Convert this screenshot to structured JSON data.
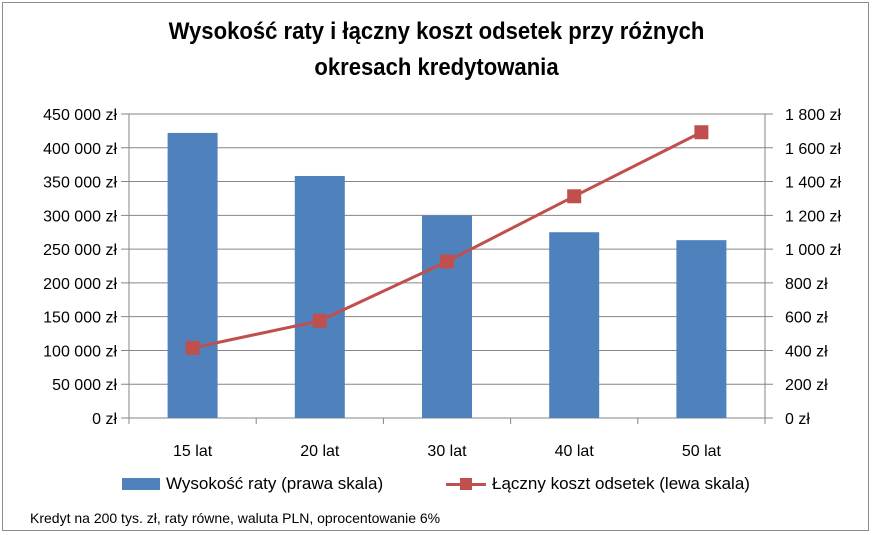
{
  "title_line1": "Wysokość raty i łączny koszt odsetek przy różnych",
  "title_line2": "okresach kredytowania",
  "footnote": "Kredyt na 200 tys. zł, raty równe, waluta PLN, oprocentowanie 6%",
  "legend": {
    "bar": "Wysokość raty (prawa skala)",
    "line": "Łączny koszt odsetek (lewa skala)"
  },
  "colors": {
    "bar": "#4f81bd",
    "line": "#c0504d",
    "grid": "#868686",
    "axis": "#868686"
  },
  "chart_data": {
    "type": "bar+line",
    "title": "Wysokość raty i łączny koszt odsetek przy różnych okresach kredytowania",
    "categories": [
      "15 lat",
      "20 lat",
      "30 lat",
      "40 lat",
      "50 lat"
    ],
    "series": [
      {
        "name": "Wysokość raty (prawa skala)",
        "type": "bar",
        "axis": "right",
        "values": [
          1688,
          1433,
          1199,
          1100,
          1053
        ]
      },
      {
        "name": "Łączny koszt odsetek (lewa skala)",
        "type": "line",
        "axis": "left",
        "values": [
          103800,
          143900,
          231700,
          328200,
          423000
        ]
      }
    ],
    "left_axis": {
      "min": 0,
      "max": 450000,
      "step": 50000,
      "ticks": [
        "0 zł",
        "50 000 zł",
        "100 000 zł",
        "150 000 zł",
        "200 000 zł",
        "250 000 zł",
        "300 000 zł",
        "350 000 zł",
        "400 000 zł",
        "450 000 zł"
      ]
    },
    "right_axis": {
      "min": 0,
      "max": 1800,
      "step": 200,
      "ticks": [
        "0 zł",
        "200 zł",
        "400 zł",
        "600 zł",
        "800 zł",
        "1 000 zł",
        "1 200 zł",
        "1 400 zł",
        "1 600 zł",
        "1 800 zł"
      ]
    },
    "grid": true,
    "legend_position": "bottom",
    "annotation": "Kredyt na 200 tys. zł, raty równe, waluta PLN, oprocentowanie 6%"
  }
}
